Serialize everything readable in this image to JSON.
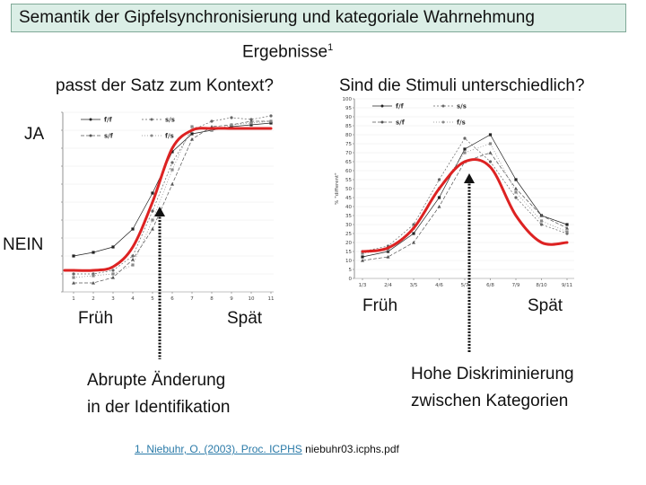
{
  "title": "Semantik der Gipfelsynchronisierung und kategoriale Wahrnehmung",
  "results": {
    "label": "Ergebnisse",
    "sup": "1"
  },
  "question_left": "passt der Satz zum Kontext?",
  "question_right": "Sind die Stimuli unterschiedlich?",
  "ja": "JA",
  "nein": "NEIN",
  "early_left": "Früh",
  "late_left": "Spät",
  "early_right": "Früh",
  "late_right": "Spät",
  "annotation_left": [
    "Abrupte Änderung",
    "in der Identifikation"
  ],
  "annotation_right": [
    "Hohe Diskriminierung",
    "zwischen Kategorien"
  ],
  "reference": {
    "link_text": "1. Niebuhr, O. (2003). Proc. ICPHS",
    "rest": " niebuhr03.icphs.pdf"
  },
  "colors": {
    "title_bg": "#dbeee6",
    "curve": "#dd2222",
    "arrow": "#111111",
    "link": "#2a7aa8"
  },
  "chart_data": [
    {
      "type": "line",
      "x": [
        1,
        2,
        3,
        4,
        5,
        6,
        7,
        8,
        9,
        10,
        11
      ],
      "xticks": [
        "1",
        "2",
        "3",
        "4",
        "5",
        "6",
        "7",
        "8",
        "9",
        "10",
        "11"
      ],
      "ylim": [
        0,
        100
      ],
      "legend": [
        "f/f",
        "s/s",
        "s/f",
        "f/s"
      ],
      "series": [
        {
          "name": "f/f",
          "values": [
            20,
            22,
            25,
            35,
            55,
            78,
            88,
            90,
            92,
            93,
            94
          ]
        },
        {
          "name": "s/s",
          "values": [
            10,
            10,
            12,
            20,
            45,
            72,
            90,
            95,
            97,
            96,
            98
          ]
        },
        {
          "name": "s/f",
          "values": [
            5,
            5,
            8,
            18,
            35,
            60,
            85,
            92,
            93,
            95,
            95
          ]
        },
        {
          "name": "f/s",
          "values": [
            8,
            9,
            10,
            15,
            40,
            68,
            92,
            90,
            93,
            94,
            95
          ]
        }
      ],
      "highlight_curve": [
        12,
        12,
        14,
        25,
        50,
        80,
        90,
        91,
        91,
        91,
        91
      ]
    },
    {
      "type": "line",
      "x": [
        1,
        2,
        3,
        4,
        5,
        6,
        7,
        8,
        9
      ],
      "xticks": [
        "1/3",
        "2/4",
        "3/5",
        "4/6",
        "5/7",
        "6/8",
        "7/9",
        "8/10",
        "9/11"
      ],
      "ylabel": "% \"different\"",
      "ylim": [
        0,
        100
      ],
      "yticks": [
        0,
        5,
        10,
        15,
        20,
        25,
        30,
        35,
        40,
        45,
        50,
        55,
        60,
        65,
        70,
        75,
        80,
        85,
        90,
        95,
        100
      ],
      "legend": [
        "f/f",
        "s/s",
        "s/f",
        "f/s"
      ],
      "series": [
        {
          "name": "f/f",
          "values": [
            12,
            15,
            25,
            45,
            72,
            80,
            55,
            35,
            30
          ]
        },
        {
          "name": "s/s",
          "values": [
            15,
            18,
            30,
            55,
            78,
            65,
            45,
            30,
            25
          ]
        },
        {
          "name": "s/f",
          "values": [
            10,
            12,
            20,
            40,
            65,
            70,
            50,
            35,
            28
          ]
        },
        {
          "name": "f/s",
          "values": [
            14,
            16,
            28,
            50,
            70,
            75,
            48,
            32,
            26
          ]
        }
      ],
      "highlight_curve": [
        15,
        17,
        28,
        50,
        65,
        62,
        35,
        20,
        20
      ]
    }
  ]
}
